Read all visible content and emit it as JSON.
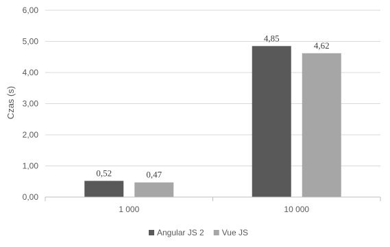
{
  "chart_data": {
    "type": "bar",
    "categories": [
      "1 000",
      "10 000"
    ],
    "series": [
      {
        "name": "Angular JS 2",
        "values": [
          0.52,
          4.85
        ],
        "labels": [
          "0,52",
          "4,85"
        ],
        "color": "#595959"
      },
      {
        "name": "Vue JS",
        "values": [
          0.47,
          4.62
        ],
        "labels": [
          "0,47",
          "4,62"
        ],
        "color": "#a6a6a6"
      }
    ],
    "ylabel": "Czas (s)",
    "xlabel": "",
    "ylim": [
      0,
      6
    ],
    "yticks": [
      0,
      1,
      2,
      3,
      4,
      5,
      6
    ],
    "ytick_labels": [
      "0,00",
      "1,00",
      "2,00",
      "3,00",
      "4,00",
      "5,00",
      "6,00"
    ],
    "grid": true,
    "legend_position": "bottom"
  }
}
